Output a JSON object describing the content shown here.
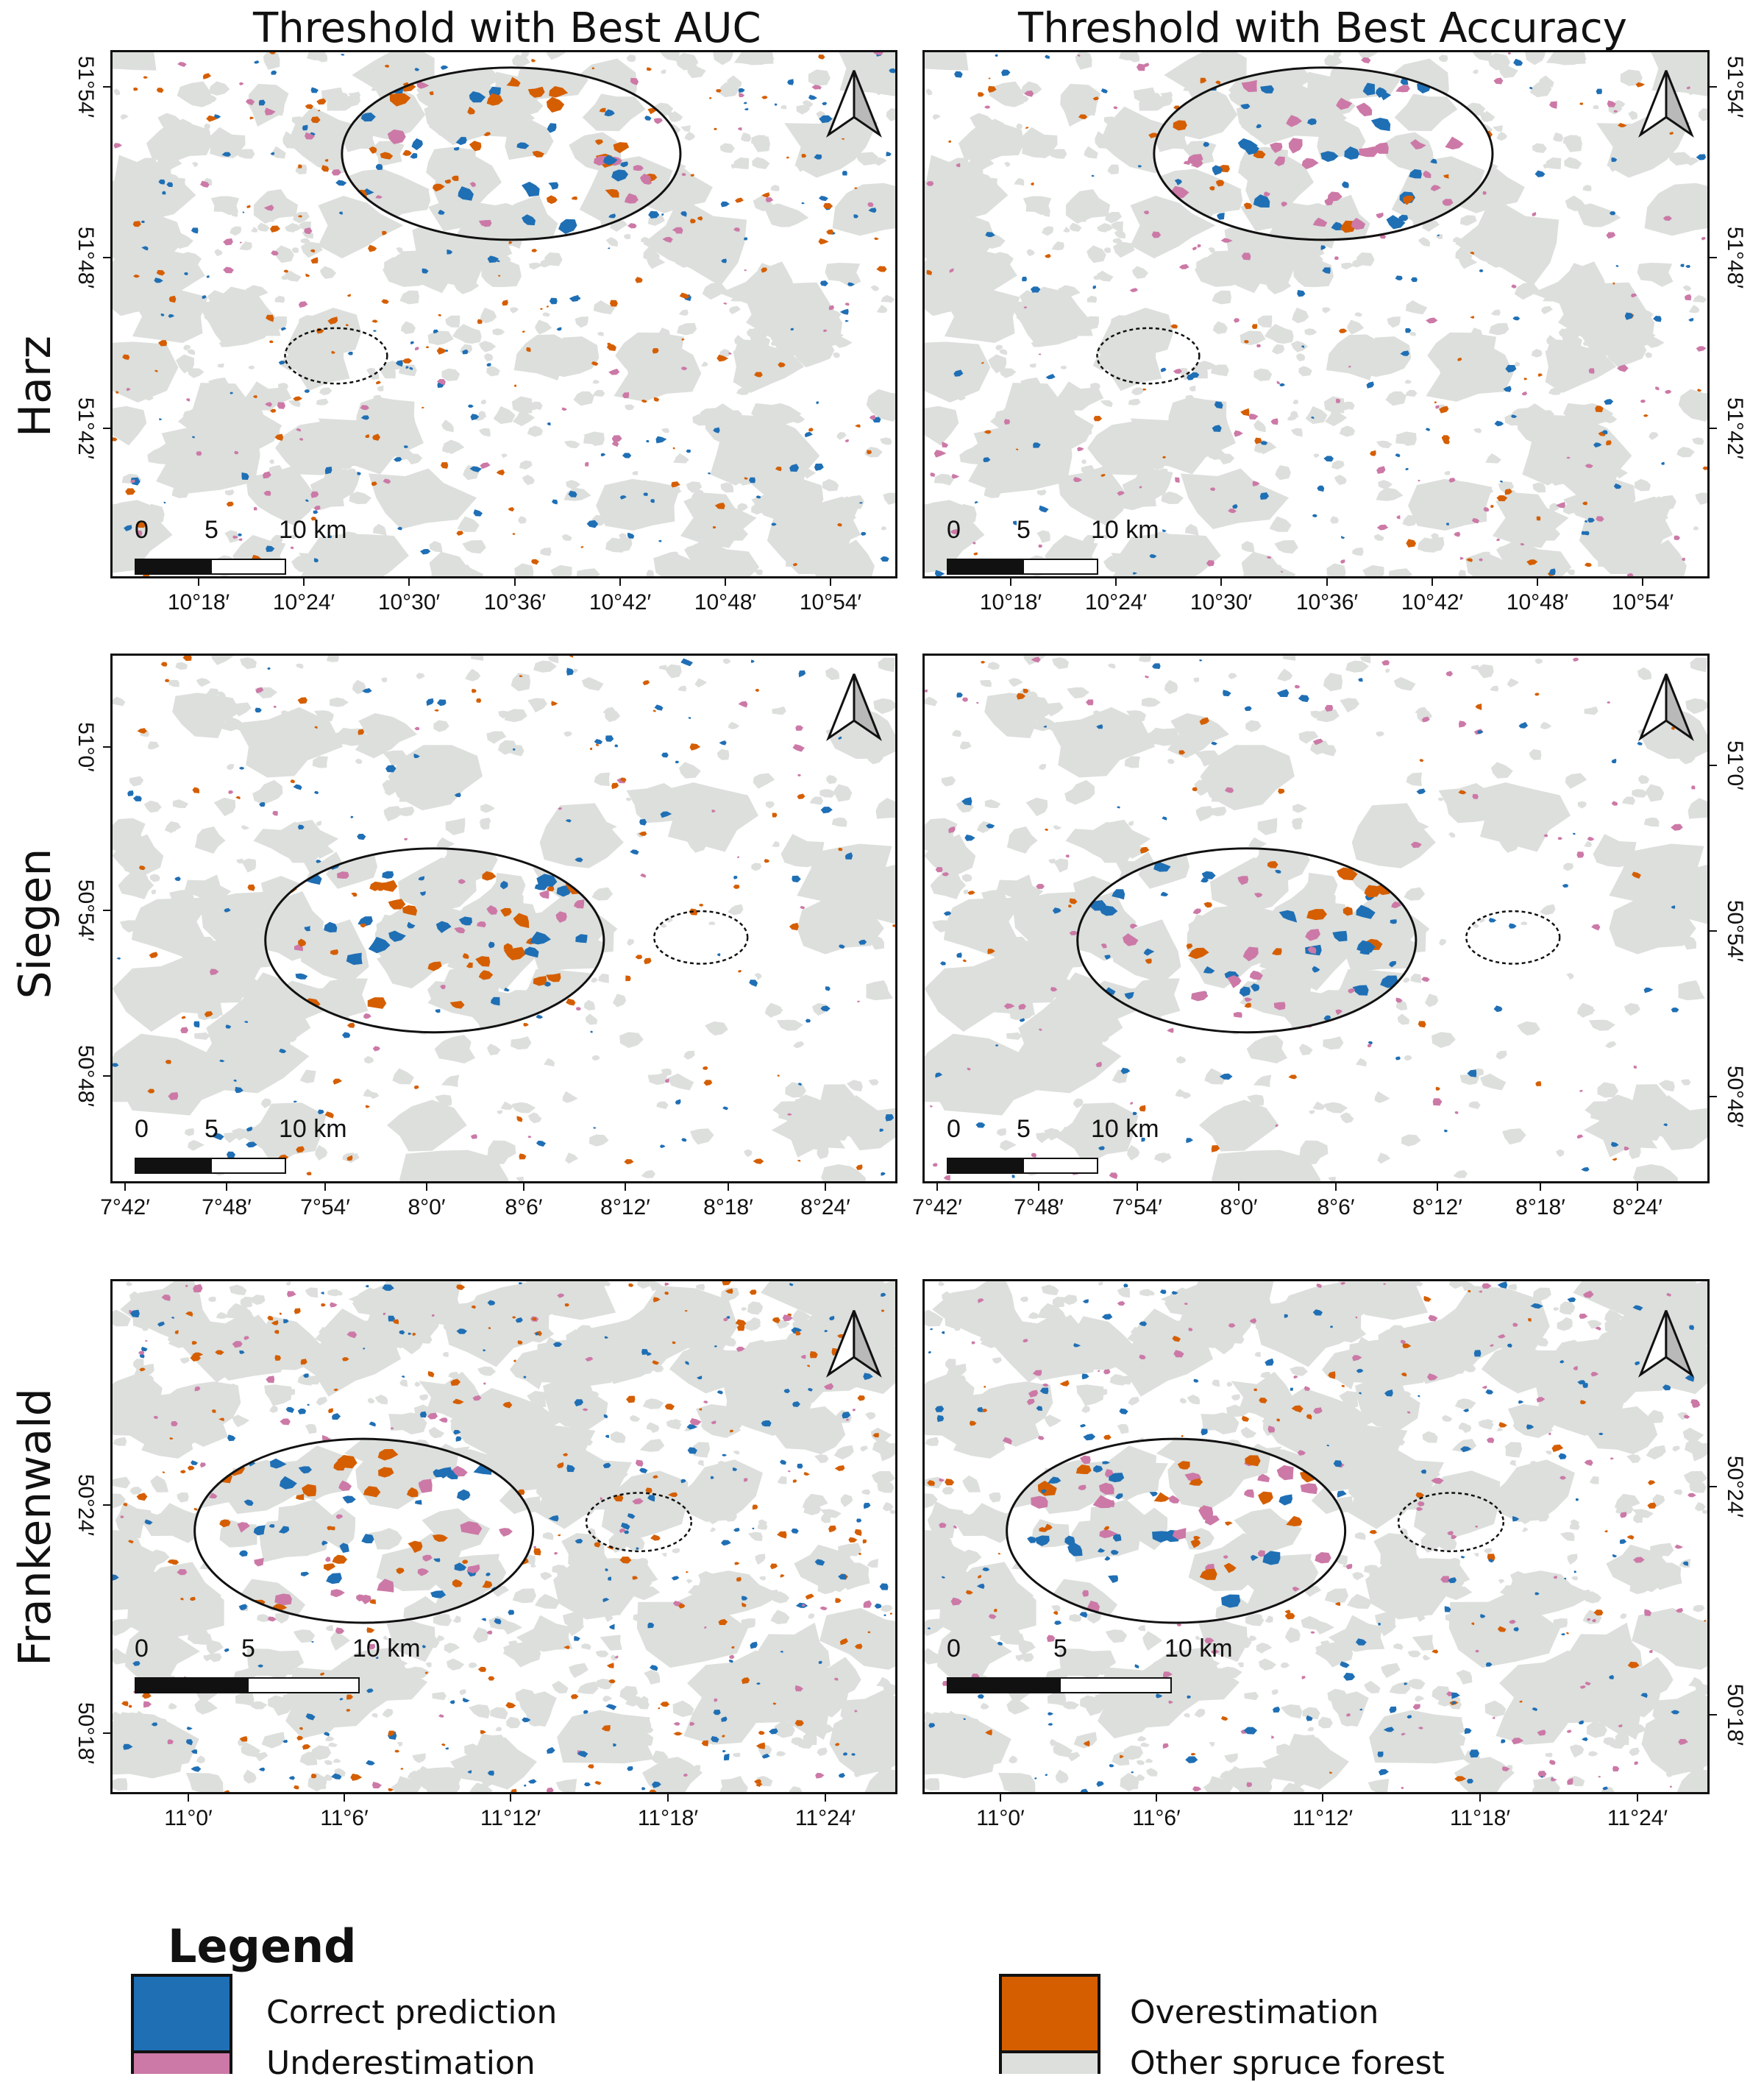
{
  "column_titles": [
    "Threshold with Best AUC",
    "Threshold with Best Accuracy"
  ],
  "rows": [
    {
      "label": "Harz",
      "x_ticks": [
        "10°18′",
        "10°24′",
        "10°30′",
        "10°36′",
        "10°42′",
        "10°48′",
        "10°54′"
      ],
      "y_ticks": [
        "51°54′",
        "51°48′",
        "51°42′"
      ],
      "scale": [
        "0",
        "5",
        "10 km"
      ]
    },
    {
      "label": "Siegen",
      "x_ticks": [
        "7°42′",
        "7°48′",
        "7°54′",
        "8°0′",
        "8°6′",
        "8°12′",
        "8°18′",
        "8°24′"
      ],
      "y_ticks_left": [
        "51°0′",
        "50°54′",
        "50°48′"
      ],
      "y_ticks_right": [
        "51°0′",
        "50°54′",
        "50°48′"
      ],
      "scale": [
        "0",
        "5",
        "10 km"
      ]
    },
    {
      "label": "Frankenwald",
      "x_ticks": [
        "11°0′",
        "11°6′",
        "11°12′",
        "11°18′",
        "11°24′"
      ],
      "y_ticks": [
        "50°24′",
        "50°18′"
      ],
      "scale": [
        "0",
        "5",
        "10 km"
      ]
    }
  ],
  "legend": {
    "title": "Legend",
    "items": [
      {
        "label": "Correct prediction",
        "color": "#1f6fb5"
      },
      {
        "label": "Underestimation",
        "color": "#cc79a7"
      },
      {
        "label": "Overestimation",
        "color": "#d55e00"
      },
      {
        "label": "Other spruce forest",
        "color": "#dcdfdc"
      }
    ]
  },
  "colors": {
    "forest": "#dcdfdc",
    "correct": "#1f6fb5",
    "under": "#cc79a7",
    "over": "#d55e00"
  },
  "icons": [
    "north-arrow-icon"
  ]
}
